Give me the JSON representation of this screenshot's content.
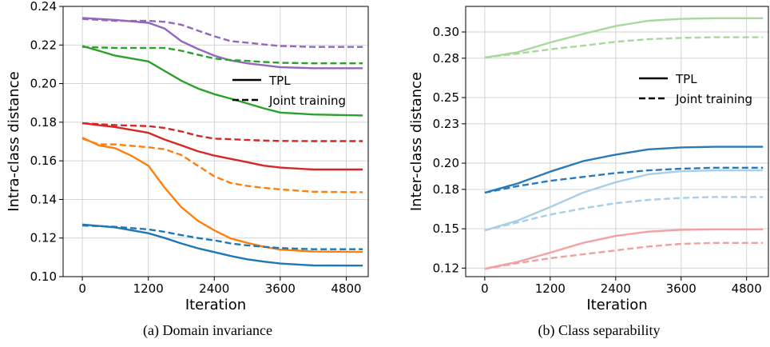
{
  "captions": {
    "a": "(a) Domain invariance",
    "b": "(b) Class separability"
  },
  "legend": {
    "solid": "TPL",
    "dashed": "Joint training"
  },
  "chart_data": [
    {
      "type": "line",
      "xlabel": "Iteration",
      "ylabel": "Intra-class distance",
      "xlim": [
        -350,
        5200
      ],
      "ylim": [
        0.1,
        0.24
      ],
      "xticks": [
        0,
        1200,
        2400,
        3600,
        4800
      ],
      "xtick_labels": [
        "0",
        "1200",
        "2400",
        "3600",
        "4800"
      ],
      "yticks": [
        0.1,
        0.12,
        0.14,
        0.16,
        0.18,
        0.2,
        0.22,
        0.24
      ],
      "ytick_labels": [
        "0.10",
        "0.12",
        "0.14",
        "0.16",
        "0.18",
        "0.20",
        "0.22",
        "0.24"
      ],
      "grid": true,
      "legend_position": "center-right",
      "series": [
        {
          "color": "#9467bd",
          "style": "solid",
          "x": [
            0,
            600,
            1200,
            1500,
            1800,
            2100,
            2400,
            2700,
            3000,
            3300,
            3600,
            4200,
            5100
          ],
          "y": [
            0.234,
            0.233,
            0.2315,
            0.2285,
            0.222,
            0.218,
            0.2145,
            0.212,
            0.2105,
            0.2095,
            0.2085,
            0.208,
            0.208
          ]
        },
        {
          "color": "#9467bd",
          "style": "dashed",
          "x": [
            0,
            600,
            1200,
            1500,
            1800,
            2100,
            2400,
            2700,
            3000,
            3300,
            3600,
            4200,
            5100
          ],
          "y": [
            0.2335,
            0.2325,
            0.2325,
            0.232,
            0.2305,
            0.2275,
            0.2245,
            0.222,
            0.2212,
            0.2203,
            0.2195,
            0.219,
            0.219
          ]
        },
        {
          "color": "#2ca02c",
          "style": "solid",
          "x": [
            0,
            600,
            1200,
            1500,
            1800,
            2100,
            2400,
            2700,
            3000,
            3300,
            3600,
            4200,
            5100
          ],
          "y": [
            0.2195,
            0.2145,
            0.2115,
            0.2065,
            0.2015,
            0.1975,
            0.1945,
            0.1922,
            0.1897,
            0.1872,
            0.185,
            0.184,
            0.1835
          ]
        },
        {
          "color": "#2ca02c",
          "style": "dashed",
          "x": [
            0,
            600,
            1200,
            1500,
            1800,
            2100,
            2400,
            2700,
            3000,
            3300,
            3600,
            4200,
            5100
          ],
          "y": [
            0.219,
            0.2185,
            0.2185,
            0.2185,
            0.217,
            0.215,
            0.213,
            0.2122,
            0.2118,
            0.2112,
            0.2108,
            0.2105,
            0.2105
          ]
        },
        {
          "color": "#d62728",
          "style": "solid",
          "x": [
            0,
            600,
            1200,
            1500,
            1800,
            2100,
            2400,
            2700,
            3000,
            3300,
            3600,
            4200,
            5100
          ],
          "y": [
            0.1795,
            0.1775,
            0.1745,
            0.171,
            0.168,
            0.165,
            0.1627,
            0.161,
            0.1593,
            0.1575,
            0.1565,
            0.1555,
            0.1555
          ]
        },
        {
          "color": "#d62728",
          "style": "dashed",
          "x": [
            0,
            600,
            1200,
            1500,
            1800,
            2100,
            2400,
            2700,
            3000,
            3300,
            3600,
            4200,
            5100
          ],
          "y": [
            0.1795,
            0.1785,
            0.178,
            0.177,
            0.1752,
            0.173,
            0.1715,
            0.1712,
            0.1708,
            0.1705,
            0.1703,
            0.1702,
            0.1702
          ]
        },
        {
          "color": "#ff7f0e",
          "style": "solid",
          "x": [
            0,
            300,
            600,
            900,
            1200,
            1500,
            1800,
            2100,
            2400,
            2700,
            3000,
            3300,
            3600,
            4200,
            5100
          ],
          "y": [
            0.172,
            0.168,
            0.1665,
            0.1625,
            0.1575,
            0.146,
            0.136,
            0.129,
            0.124,
            0.1198,
            0.1175,
            0.1155,
            0.114,
            0.113,
            0.1128
          ]
        },
        {
          "color": "#ff7f0e",
          "style": "dashed",
          "x": [
            0,
            300,
            600,
            1200,
            1500,
            1800,
            2100,
            2400,
            2700,
            3000,
            3300,
            3600,
            4200,
            5100
          ],
          "y": [
            0.1715,
            0.1685,
            0.1685,
            0.167,
            0.166,
            0.163,
            0.1575,
            0.152,
            0.1485,
            0.147,
            0.146,
            0.1452,
            0.144,
            0.1437
          ]
        },
        {
          "color": "#1f77b4",
          "style": "solid",
          "x": [
            0,
            600,
            1200,
            1500,
            1800,
            2100,
            2400,
            2700,
            3000,
            3300,
            3600,
            4200,
            5100
          ],
          "y": [
            0.127,
            0.1255,
            0.1225,
            0.12,
            0.1172,
            0.1147,
            0.1127,
            0.1107,
            0.109,
            0.1078,
            0.1068,
            0.1058,
            0.1057
          ]
        },
        {
          "color": "#1f77b4",
          "style": "dashed",
          "x": [
            0,
            600,
            1200,
            1500,
            1800,
            2100,
            2400,
            2700,
            3000,
            3300,
            3600,
            4200,
            5100
          ],
          "y": [
            0.1265,
            0.1258,
            0.1245,
            0.1232,
            0.1215,
            0.12,
            0.1188,
            0.1172,
            0.1162,
            0.1155,
            0.1148,
            0.1142,
            0.1142
          ]
        }
      ]
    },
    {
      "type": "line",
      "xlabel": "Iteration",
      "ylabel": "Inter-class distance",
      "xlim": [
        -350,
        5200
      ],
      "ylim": [
        0.1135,
        0.3195
      ],
      "xticks": [
        0,
        1200,
        2400,
        3600,
        4800
      ],
      "xtick_labels": [
        "0",
        "1200",
        "2400",
        "3600",
        "4800"
      ],
      "yticks": [
        0.12,
        0.15,
        0.18,
        0.2,
        0.23,
        0.25,
        0.28,
        0.3
      ],
      "ytick_labels": [
        "0.12",
        "0.15",
        "0.18",
        "0.20",
        "0.23",
        "0.25",
        "0.28",
        "0.30"
      ],
      "grid": true,
      "legend_position": "upper-right",
      "series": [
        {
          "color": "#a6d99a",
          "style": "solid",
          "x": [
            0,
            600,
            1200,
            1800,
            2400,
            3000,
            3600,
            4200,
            5100
          ],
          "y": [
            0.2805,
            0.2845,
            0.292,
            0.2985,
            0.3045,
            0.3085,
            0.31,
            0.3105,
            0.3105
          ]
        },
        {
          "color": "#a6d99a",
          "style": "dashed",
          "x": [
            0,
            600,
            1200,
            1800,
            2400,
            3000,
            3600,
            4200,
            5100
          ],
          "y": [
            0.2805,
            0.2835,
            0.2868,
            0.2895,
            0.2925,
            0.2945,
            0.2955,
            0.296,
            0.296
          ]
        },
        {
          "color": "#2a7ab9",
          "style": "solid",
          "x": [
            0,
            600,
            1200,
            1800,
            2400,
            3000,
            3600,
            4200,
            5100
          ],
          "y": [
            0.1775,
            0.1845,
            0.1935,
            0.2015,
            0.2065,
            0.2105,
            0.212,
            0.2125,
            0.2125
          ]
        },
        {
          "color": "#2a7ab9",
          "style": "dashed",
          "x": [
            0,
            600,
            1200,
            1800,
            2400,
            3000,
            3600,
            4200,
            5100
          ],
          "y": [
            0.1775,
            0.1825,
            0.1865,
            0.1895,
            0.1925,
            0.1945,
            0.1958,
            0.1965,
            0.1965
          ]
        },
        {
          "color": "#a8cfe4",
          "style": "solid",
          "x": [
            0,
            600,
            1200,
            1800,
            2400,
            3000,
            3600,
            4200,
            5100
          ],
          "y": [
            0.1488,
            0.1562,
            0.1665,
            0.1775,
            0.1855,
            0.1915,
            0.1938,
            0.1945,
            0.1945
          ]
        },
        {
          "color": "#a8cfe4",
          "style": "dashed",
          "x": [
            0,
            600,
            1200,
            1800,
            2400,
            3000,
            3600,
            4200,
            5100
          ],
          "y": [
            0.1488,
            0.1548,
            0.1608,
            0.1655,
            0.1695,
            0.172,
            0.1735,
            0.1742,
            0.1742
          ]
        },
        {
          "color": "#f4a0a1",
          "style": "solid",
          "x": [
            0,
            600,
            1200,
            1800,
            2400,
            3000,
            3600,
            4200,
            5100
          ],
          "y": [
            0.1195,
            0.1248,
            0.1318,
            0.1392,
            0.1445,
            0.1478,
            0.1492,
            0.1495,
            0.1495
          ]
        },
        {
          "color": "#f4a0a1",
          "style": "dashed",
          "x": [
            0,
            600,
            1200,
            1800,
            2400,
            3000,
            3600,
            4200,
            5100
          ],
          "y": [
            0.1195,
            0.1238,
            0.1275,
            0.1305,
            0.1335,
            0.1365,
            0.1385,
            0.1392,
            0.1392
          ]
        }
      ]
    }
  ]
}
